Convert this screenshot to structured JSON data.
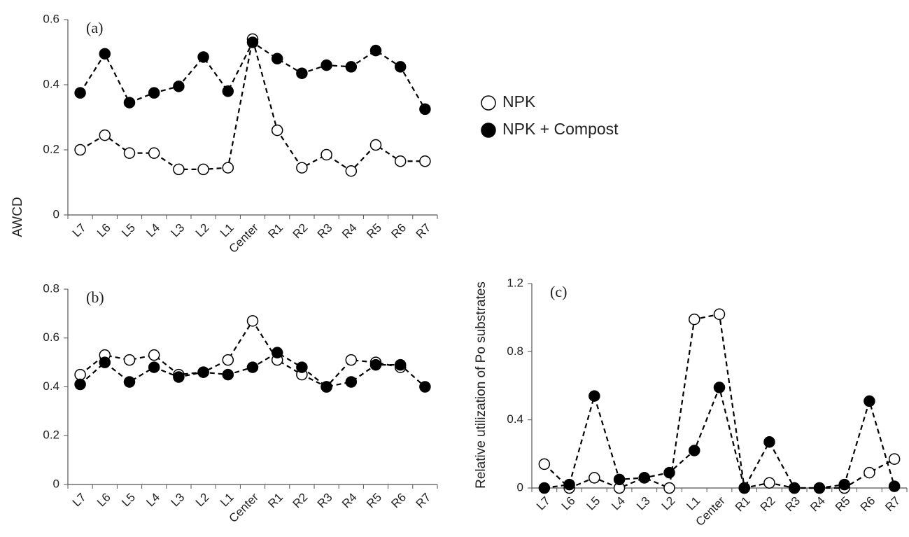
{
  "chart_data": [
    {
      "type": "line",
      "title": "(a)",
      "ylabel": "AWCD",
      "legend": "right",
      "categories": [
        "L7",
        "L6",
        "L5",
        "L4",
        "L3",
        "L2",
        "L1",
        "Center",
        "R1",
        "R2",
        "R3",
        "R4",
        "R5",
        "R6",
        "R7"
      ],
      "series": [
        {
          "name": "NPK",
          "color": "#000000",
          "marker_fill": "#ffffff",
          "values": [
            0.2,
            0.245,
            0.19,
            0.19,
            0.14,
            0.14,
            0.145,
            0.54,
            0.26,
            0.145,
            0.185,
            0.135,
            0.215,
            0.165,
            0.165
          ]
        },
        {
          "name": "NPK + Compost",
          "color": "#000000",
          "marker_fill": "#000000",
          "values": [
            0.375,
            0.495,
            0.345,
            0.375,
            0.395,
            0.485,
            0.38,
            0.53,
            0.48,
            0.435,
            0.46,
            0.455,
            0.505,
            0.455,
            0.325
          ]
        }
      ],
      "ylim": [
        0,
        0.6
      ],
      "yticks": [
        0,
        0.2,
        0.4,
        0.6
      ]
    },
    {
      "type": "line",
      "title": "(b)",
      "categories": [
        "L7",
        "L6",
        "L5",
        "L4",
        "L3",
        "L2",
        "L1",
        "Center",
        "R1",
        "R2",
        "R3",
        "R4",
        "R5",
        "R6",
        "R7"
      ],
      "series": [
        {
          "name": "NPK",
          "color": "#000000",
          "marker_fill": "#ffffff",
          "values": [
            0.45,
            0.53,
            0.51,
            0.53,
            0.45,
            0.46,
            0.51,
            0.67,
            0.51,
            0.45,
            0.4,
            0.51,
            0.5,
            0.48,
            null
          ]
        },
        {
          "name": "NPK + Compost",
          "color": "#000000",
          "marker_fill": "#000000",
          "values": [
            0.41,
            0.5,
            0.42,
            0.48,
            0.44,
            0.46,
            0.45,
            0.48,
            0.54,
            0.48,
            0.4,
            0.42,
            0.49,
            0.49,
            0.4
          ]
        }
      ],
      "ylim": [
        0,
        0.8
      ],
      "yticks": [
        0,
        0.2,
        0.4,
        0.6,
        0.8
      ]
    },
    {
      "type": "line",
      "title": "(c)",
      "ylabel": "Relative  utilization  of  Po substrates",
      "categories": [
        "L7",
        "L6",
        "L5",
        "L4",
        "L3",
        "L2",
        "L1",
        "Center",
        "R1",
        "R2",
        "R3",
        "R4",
        "R5",
        "R6",
        "R7"
      ],
      "series": [
        {
          "name": "NPK",
          "color": "#000000",
          "marker_fill": "#ffffff",
          "values": [
            0.14,
            0,
            0.06,
            0,
            0.06,
            0,
            0.99,
            1.02,
            0,
            0.03,
            0,
            0,
            0,
            0.09,
            0.17
          ]
        },
        {
          "name": "NPK + Compost",
          "color": "#000000",
          "marker_fill": "#000000",
          "values": [
            0,
            0.02,
            0.54,
            0.05,
            0.06,
            0.09,
            0.22,
            0.59,
            0,
            0.27,
            0,
            0,
            0.02,
            0.51,
            0.01
          ]
        }
      ],
      "ylim": [
        0,
        1.2
      ],
      "yticks": [
        0,
        0.4,
        0.8,
        1.2
      ]
    }
  ]
}
